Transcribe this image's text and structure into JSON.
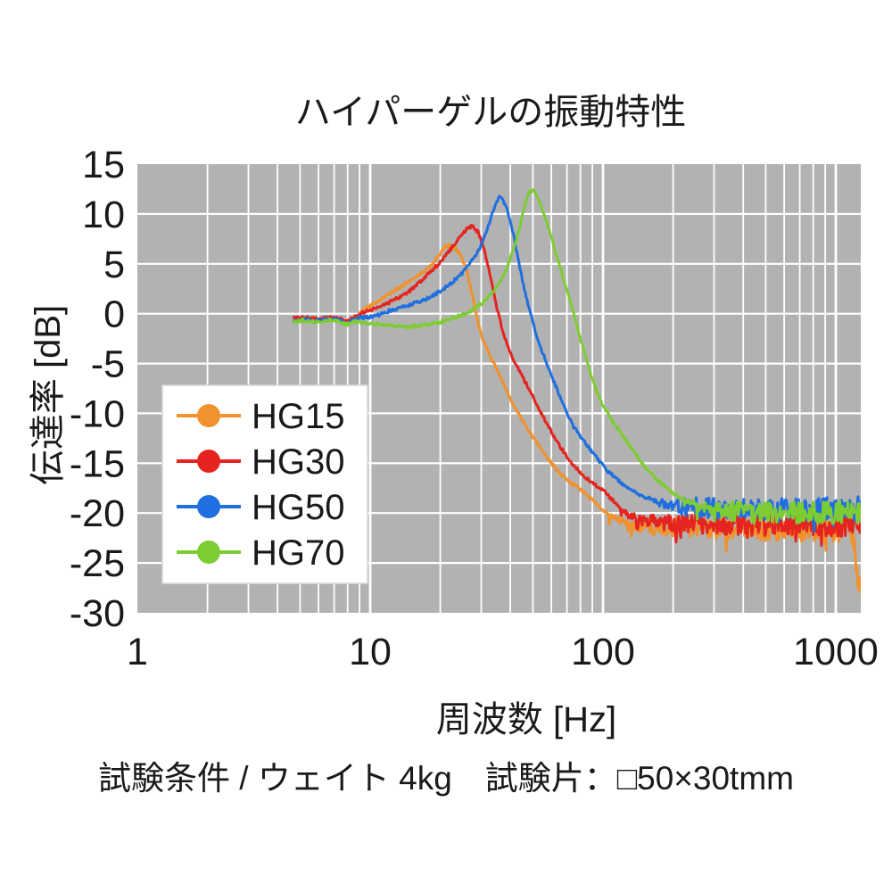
{
  "chart_data": {
    "type": "line",
    "title": "ハイパーゲルの振動特性",
    "xlabel": "周波数 [Hz]",
    "ylabel": "伝達率 [dB]",
    "x_scale": "log",
    "xlim": [
      1,
      1280
    ],
    "ylim": [
      -30,
      15
    ],
    "xticks": [
      1,
      10,
      100,
      1000
    ],
    "yticks": [
      15,
      10,
      5,
      0,
      -5,
      -10,
      -15,
      -20,
      -25,
      -30
    ],
    "grid": true,
    "plot_bg": "#b2b2b2",
    "grid_color": "#ffffff",
    "legend_position": "inside lower-left",
    "series": [
      {
        "name": "HG15",
        "color": "#f0922d",
        "peak_hz": 21,
        "peak_db": 6.8,
        "noisy_above_hz": 105,
        "noise_db": 1.35,
        "points": [
          [
            4.7,
            -0.6
          ],
          [
            5.2,
            -0.45
          ],
          [
            5.8,
            -0.65
          ],
          [
            6.5,
            -0.5
          ],
          [
            7.2,
            -0.45
          ],
          [
            7.9,
            -0.85
          ],
          [
            8.6,
            -0.35
          ],
          [
            9.3,
            0.3
          ],
          [
            10,
            0.8
          ],
          [
            11,
            1.4
          ],
          [
            12,
            1.9
          ],
          [
            13.5,
            2.7
          ],
          [
            15,
            3.4
          ],
          [
            16.5,
            4.0
          ],
          [
            18,
            4.7
          ],
          [
            19.5,
            5.7
          ],
          [
            21,
            6.7
          ],
          [
            22,
            6.8
          ],
          [
            23,
            6.6
          ],
          [
            24.5,
            5.9
          ],
          [
            26,
            4.3
          ],
          [
            27.5,
            1.8
          ],
          [
            29,
            -0.9
          ],
          [
            30.5,
            -2.6
          ],
          [
            33,
            -4.4
          ],
          [
            36,
            -6.2
          ],
          [
            40,
            -8.5
          ],
          [
            45,
            -10.7
          ],
          [
            50,
            -12.4
          ],
          [
            57,
            -14.3
          ],
          [
            64,
            -15.8
          ],
          [
            72,
            -16.9
          ],
          [
            82,
            -17.8
          ],
          [
            92,
            -18.9
          ],
          [
            100,
            -19.8
          ],
          [
            115,
            -20.6
          ],
          [
            140,
            -21.2
          ],
          [
            200,
            -21.4
          ],
          [
            400,
            -21.6
          ],
          [
            800,
            -21.7
          ],
          [
            1100,
            -21.8
          ],
          [
            1180,
            -21.6
          ],
          [
            1240,
            -26.8
          ],
          [
            1280,
            -26.8
          ]
        ]
      },
      {
        "name": "HG30",
        "color": "#e52420",
        "peak_hz": 27,
        "peak_db": 8.8,
        "noisy_above_hz": 115,
        "noise_db": 1.25,
        "points": [
          [
            4.7,
            -0.5
          ],
          [
            5.2,
            -0.4
          ],
          [
            5.8,
            -0.55
          ],
          [
            6.5,
            -0.45
          ],
          [
            7.2,
            -0.4
          ],
          [
            7.9,
            -0.8
          ],
          [
            8.6,
            -0.3
          ],
          [
            9.3,
            0.1
          ],
          [
            10,
            0.35
          ],
          [
            11,
            0.7
          ],
          [
            12,
            1.1
          ],
          [
            13.5,
            1.7
          ],
          [
            15,
            2.4
          ],
          [
            16.5,
            3.2
          ],
          [
            18,
            4.1
          ],
          [
            20,
            5.2
          ],
          [
            22,
            6.4
          ],
          [
            24,
            7.5
          ],
          [
            26,
            8.5
          ],
          [
            27.5,
            8.8
          ],
          [
            29,
            8.2
          ],
          [
            30.5,
            6.9
          ],
          [
            32,
            4.9
          ],
          [
            33.5,
            2.7
          ],
          [
            35,
            0.6
          ],
          [
            36.5,
            -1.1
          ],
          [
            38,
            -2.5
          ],
          [
            40,
            -3.9
          ],
          [
            43,
            -5.4
          ],
          [
            46,
            -6.7
          ],
          [
            50,
            -8.3
          ],
          [
            54,
            -9.9
          ],
          [
            58,
            -11.2
          ],
          [
            63,
            -12.7
          ],
          [
            68,
            -13.9
          ],
          [
            73,
            -14.9
          ],
          [
            79,
            -15.8
          ],
          [
            86,
            -16.6
          ],
          [
            94,
            -17.3
          ],
          [
            102,
            -17.9
          ],
          [
            112,
            -18.9
          ],
          [
            125,
            -20.0
          ],
          [
            145,
            -20.7
          ],
          [
            200,
            -21.0
          ],
          [
            400,
            -21.2
          ],
          [
            800,
            -21.3
          ],
          [
            1280,
            -21.1
          ]
        ]
      },
      {
        "name": "HG50",
        "color": "#1f6fe0",
        "peak_hz": 35,
        "peak_db": 11.7,
        "noisy_above_hz": 150,
        "noise_db": 1.3,
        "points": [
          [
            4.7,
            -0.7
          ],
          [
            5.2,
            -0.55
          ],
          [
            5.8,
            -0.75
          ],
          [
            6.5,
            -0.6
          ],
          [
            7.2,
            -0.55
          ],
          [
            7.9,
            -1.0
          ],
          [
            8.6,
            -0.5
          ],
          [
            9.3,
            -0.4
          ],
          [
            10,
            -0.3
          ],
          [
            11,
            -0.1
          ],
          [
            12,
            0.25
          ],
          [
            13.5,
            0.6
          ],
          [
            15,
            0.95
          ],
          [
            16.5,
            1.25
          ],
          [
            18,
            1.65
          ],
          [
            20,
            2.25
          ],
          [
            22,
            2.95
          ],
          [
            24.5,
            3.9
          ],
          [
            27,
            5.1
          ],
          [
            29.5,
            6.5
          ],
          [
            31.5,
            8.1
          ],
          [
            33,
            9.6
          ],
          [
            34.5,
            11.0
          ],
          [
            35.8,
            11.7
          ],
          [
            37,
            11.5
          ],
          [
            38.5,
            10.6
          ],
          [
            40,
            9.3
          ],
          [
            41.5,
            7.6
          ],
          [
            43,
            5.7
          ],
          [
            45,
            3.4
          ],
          [
            47,
            1.5
          ],
          [
            49,
            -0.1
          ],
          [
            51,
            -1.6
          ],
          [
            54,
            -3.4
          ],
          [
            57,
            -4.9
          ],
          [
            61,
            -6.6
          ],
          [
            65,
            -8.2
          ],
          [
            70,
            -10.0
          ],
          [
            75,
            -11.4
          ],
          [
            81,
            -12.5
          ],
          [
            88,
            -13.6
          ],
          [
            95,
            -14.6
          ],
          [
            103,
            -15.6
          ],
          [
            112,
            -16.4
          ],
          [
            122,
            -17.1
          ],
          [
            135,
            -17.8
          ],
          [
            150,
            -18.4
          ],
          [
            170,
            -18.9
          ],
          [
            200,
            -19.3
          ],
          [
            400,
            -19.6
          ],
          [
            800,
            -19.7
          ],
          [
            1280,
            -19.5
          ]
        ]
      },
      {
        "name": "HG70",
        "color": "#7ecc33",
        "peak_hz": 49,
        "peak_db": 12.4,
        "noisy_above_hz": 215,
        "noise_db": 1.2,
        "points": [
          [
            4.7,
            -0.8
          ],
          [
            5.2,
            -0.65
          ],
          [
            5.8,
            -0.85
          ],
          [
            6.5,
            -0.7
          ],
          [
            7.2,
            -0.7
          ],
          [
            7.9,
            -1.1
          ],
          [
            8.6,
            -0.8
          ],
          [
            9.5,
            -0.95
          ],
          [
            11,
            -1.1
          ],
          [
            13,
            -1.25
          ],
          [
            15,
            -1.3
          ],
          [
            17,
            -1.15
          ],
          [
            19,
            -0.95
          ],
          [
            21,
            -0.7
          ],
          [
            23,
            -0.4
          ],
          [
            25,
            -0.1
          ],
          [
            27,
            0.3
          ],
          [
            29,
            0.75
          ],
          [
            31,
            1.3
          ],
          [
            33,
            1.95
          ],
          [
            35,
            2.7
          ],
          [
            37,
            3.6
          ],
          [
            39,
            4.8
          ],
          [
            41,
            6.2
          ],
          [
            43,
            7.9
          ],
          [
            45,
            9.8
          ],
          [
            46.5,
            11.1
          ],
          [
            48,
            12.1
          ],
          [
            49.5,
            12.4
          ],
          [
            51,
            12.2
          ],
          [
            53,
            11.5
          ],
          [
            55,
            10.4
          ],
          [
            58,
            8.8
          ],
          [
            61,
            7.1
          ],
          [
            64,
            5.4
          ],
          [
            68,
            3.3
          ],
          [
            72,
            1.4
          ],
          [
            76,
            -0.6
          ],
          [
            80,
            -2.5
          ],
          [
            84,
            -4.2
          ],
          [
            88,
            -5.9
          ],
          [
            92,
            -7.3
          ],
          [
            96,
            -8.3
          ],
          [
            100,
            -9.2
          ],
          [
            106,
            -10.2
          ],
          [
            113,
            -11.2
          ],
          [
            121,
            -12.2
          ],
          [
            130,
            -13.2
          ],
          [
            140,
            -14.3
          ],
          [
            150,
            -15.2
          ],
          [
            162,
            -16.1
          ],
          [
            175,
            -16.9
          ],
          [
            190,
            -17.6
          ],
          [
            210,
            -18.3
          ],
          [
            235,
            -18.9
          ],
          [
            265,
            -19.4
          ],
          [
            300,
            -19.7
          ],
          [
            500,
            -19.9
          ],
          [
            900,
            -20.0
          ],
          [
            1280,
            -19.8
          ]
        ]
      }
    ]
  },
  "footer": {
    "text": "試験条件 / ウェイト 4kg　試験片：□50×30tmm"
  }
}
